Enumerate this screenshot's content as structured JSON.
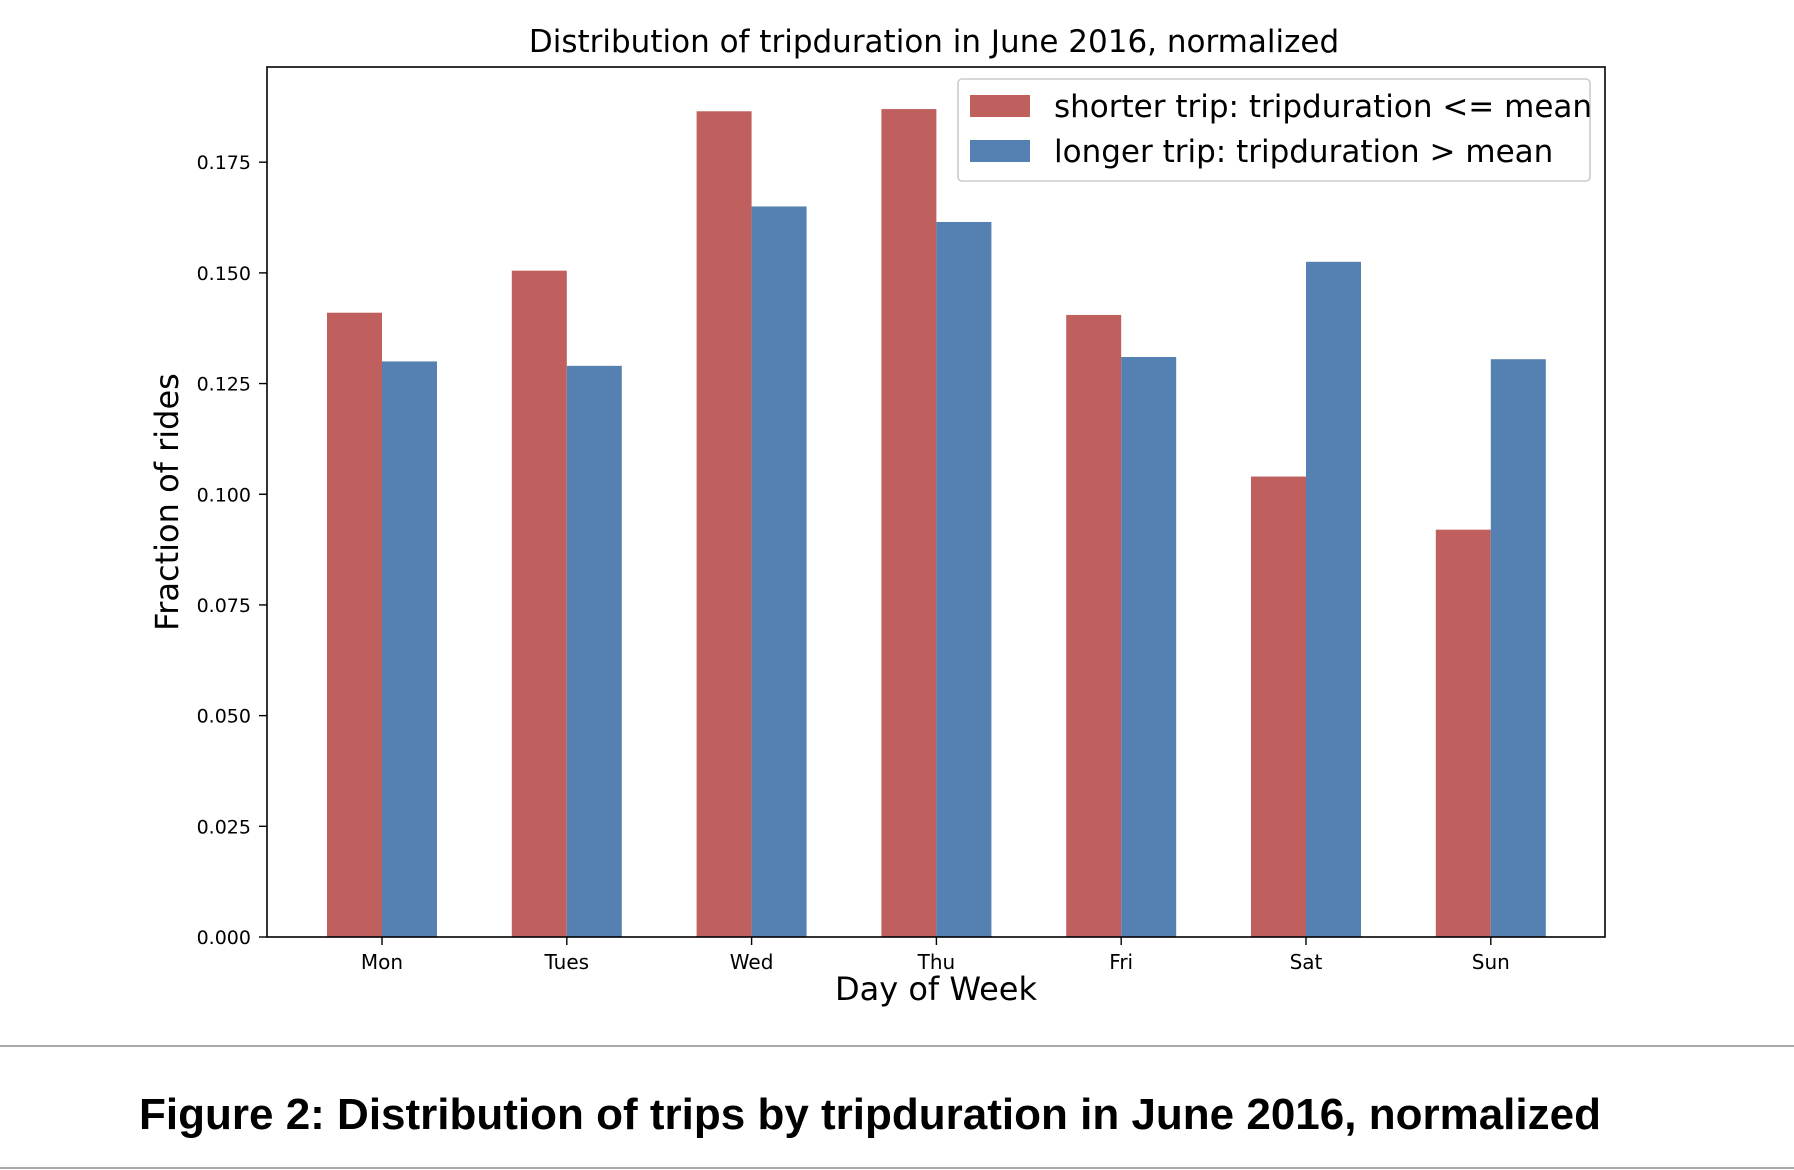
{
  "colors": {
    "shorter": "#c0605e",
    "longer": "#5580b2",
    "axis": "#000000"
  },
  "caption": "Figure 2: Distribution of trips by tripduration in June 2016, normalized",
  "chart_data": {
    "type": "bar",
    "title": "Distribution of tripduration in June 2016, normalized",
    "xlabel": "Day of Week",
    "ylabel": "Fraction of rides",
    "categories": [
      "Mon",
      "Tues",
      "Wed",
      "Thu",
      "Fri",
      "Sat",
      "Sun"
    ],
    "series": [
      {
        "name": "shorter trip: tripduration <= mean",
        "values": [
          0.141,
          0.1505,
          0.1865,
          0.187,
          0.1405,
          0.104,
          0.092
        ]
      },
      {
        "name": "longer trip: tripduration > mean",
        "values": [
          0.13,
          0.129,
          0.165,
          0.1615,
          0.131,
          0.1525,
          0.1305
        ]
      }
    ],
    "ylim": [
      0,
      0.1965
    ],
    "yticks": [
      "0.000",
      "0.025",
      "0.050",
      "0.075",
      "0.100",
      "0.125",
      "0.150",
      "0.175"
    ],
    "legend_position": "top-right",
    "grid": false
  }
}
